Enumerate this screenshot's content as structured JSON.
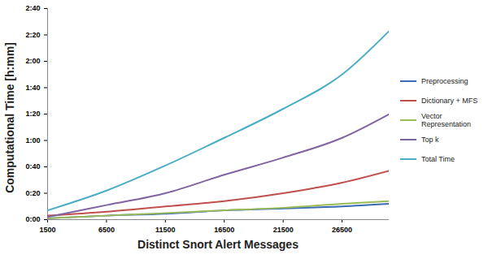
{
  "chart_data": {
    "type": "line",
    "x_label": "Distinct Snort Alert Messages",
    "y_label": "Computational Time [h:mm]",
    "x": [
      1500,
      6500,
      11500,
      16500,
      21500,
      26500,
      30500
    ],
    "series": [
      {
        "name": "Preprocessing",
        "color": "#3a6cb5",
        "values": [
          1,
          3,
          4.5,
          7,
          8.5,
          10,
          12
        ]
      },
      {
        "name": "Dictionary + MFS",
        "color": "#c0504d",
        "values": [
          3,
          6,
          10,
          14,
          20,
          28,
          37
        ]
      },
      {
        "name": "Vector Representation",
        "color": "#9bbb59",
        "values": [
          1,
          3,
          5,
          7,
          9,
          12,
          14
        ]
      },
      {
        "name": "Top k",
        "color": "#8064a2",
        "values": [
          2,
          11,
          20,
          34,
          47,
          62,
          80
        ]
      },
      {
        "name": "Total Time",
        "color": "#4bacc6",
        "values": [
          7,
          22,
          41,
          62,
          84,
          110,
          143
        ]
      }
    ],
    "xlim": [
      1500,
      30500
    ],
    "xticks": [
      1500,
      6500,
      11500,
      16500,
      21500,
      26500
    ],
    "ylim": [
      0,
      160
    ],
    "yticks": [
      {
        "value": 0,
        "label": "0:00"
      },
      {
        "value": 20,
        "label": "0:20"
      },
      {
        "value": 40,
        "label": "0:40"
      },
      {
        "value": 60,
        "label": "1:00"
      },
      {
        "value": 80,
        "label": "1:20"
      },
      {
        "value": 100,
        "label": "1:40"
      },
      {
        "value": 120,
        "label": "2:00"
      },
      {
        "value": 140,
        "label": "2:20"
      },
      {
        "value": 160,
        "label": "2:40"
      }
    ],
    "grid": false,
    "legend": "right"
  }
}
